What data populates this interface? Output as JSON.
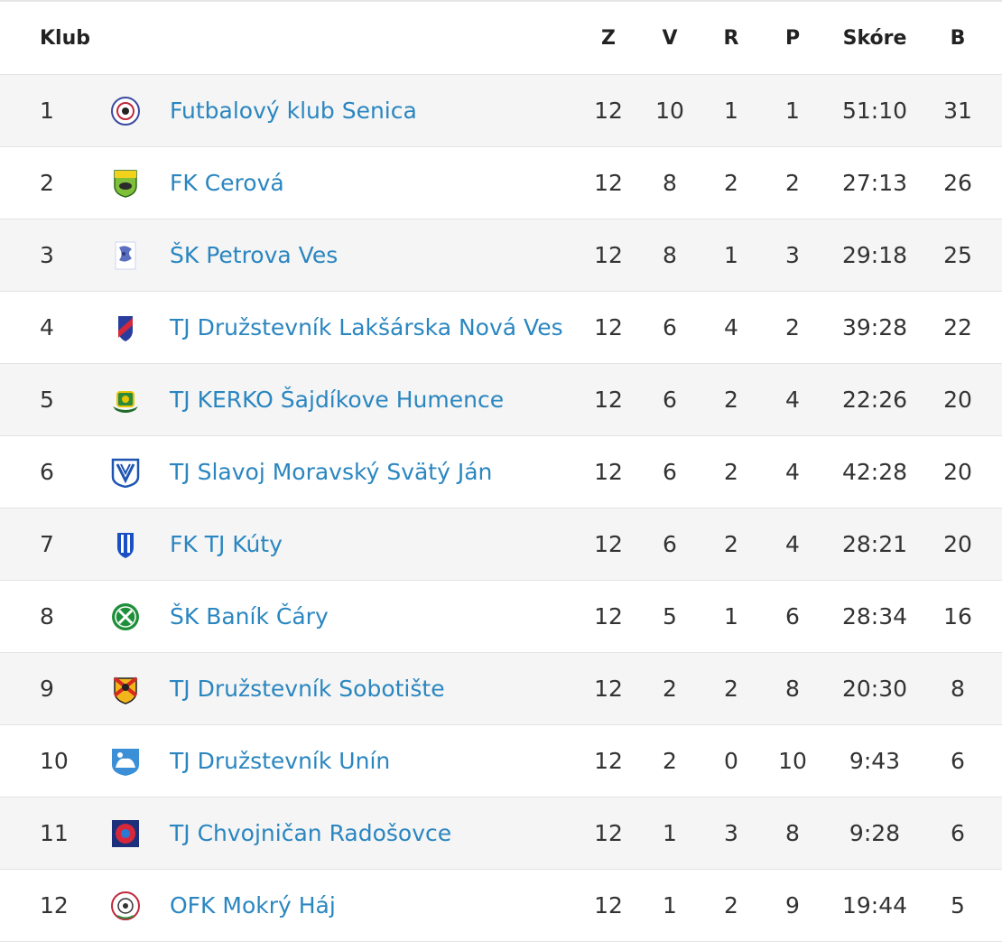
{
  "header": {
    "klub": "Klub",
    "z": "Z",
    "v": "V",
    "r": "R",
    "p": "P",
    "skore": "Skóre",
    "b": "B"
  },
  "rows": [
    {
      "pos": "1",
      "name": "Futbalový klub Senica",
      "z": "12",
      "v": "10",
      "r": "1",
      "p": "1",
      "skore": "51:10",
      "b": "31",
      "logo": "fk-senica-crest-icon"
    },
    {
      "pos": "2",
      "name": "FK Cerová",
      "z": "12",
      "v": "8",
      "r": "2",
      "p": "2",
      "skore": "27:13",
      "b": "26",
      "logo": "fk-cerova-crest-icon"
    },
    {
      "pos": "3",
      "name": "ŠK Petrova Ves",
      "z": "12",
      "v": "8",
      "r": "1",
      "p": "3",
      "skore": "29:18",
      "b": "25",
      "logo": "sk-petrova-ves-crest-icon"
    },
    {
      "pos": "4",
      "name": "TJ Družstevník Lakšárska Nová Ves",
      "z": "12",
      "v": "6",
      "r": "4",
      "p": "2",
      "skore": "39:28",
      "b": "22",
      "logo": "tj-laksarska-crest-icon"
    },
    {
      "pos": "5",
      "name": "TJ KERKO Šajdíkove Humence",
      "z": "12",
      "v": "6",
      "r": "2",
      "p": "4",
      "skore": "22:26",
      "b": "20",
      "logo": "tj-kerko-crest-icon"
    },
    {
      "pos": "6",
      "name": "TJ Slavoj Moravský Svätý Ján",
      "z": "12",
      "v": "6",
      "r": "2",
      "p": "4",
      "skore": "42:28",
      "b": "20",
      "logo": "tj-slavoj-crest-icon"
    },
    {
      "pos": "7",
      "name": "FK TJ Kúty",
      "z": "12",
      "v": "6",
      "r": "2",
      "p": "4",
      "skore": "28:21",
      "b": "20",
      "logo": "fk-kuty-crest-icon"
    },
    {
      "pos": "8",
      "name": "ŠK Baník Čáry",
      "z": "12",
      "v": "5",
      "r": "1",
      "p": "6",
      "skore": "28:34",
      "b": "16",
      "logo": "sk-banik-cary-crest-icon"
    },
    {
      "pos": "9",
      "name": "TJ Družstevník Sobotište",
      "z": "12",
      "v": "2",
      "r": "2",
      "p": "8",
      "skore": "20:30",
      "b": "8",
      "logo": "tj-sobotiste-crest-icon"
    },
    {
      "pos": "10",
      "name": "TJ Družstevník Unín",
      "z": "12",
      "v": "2",
      "r": "0",
      "p": "10",
      "skore": "9:43",
      "b": "6",
      "logo": "tj-unin-crest-icon"
    },
    {
      "pos": "11",
      "name": "TJ Chvojničan Radošovce",
      "z": "12",
      "v": "1",
      "r": "3",
      "p": "8",
      "skore": "9:28",
      "b": "6",
      "logo": "tj-radosovce-crest-icon"
    },
    {
      "pos": "12",
      "name": "OFK Mokrý Háj",
      "z": "12",
      "v": "1",
      "r": "2",
      "p": "9",
      "skore": "19:44",
      "b": "5",
      "logo": "ofk-mokry-haj-crest-icon"
    }
  ],
  "colors": {
    "link": "#2a86c0",
    "row_alt": "#f5f5f5",
    "border": "#e3e3e3"
  }
}
